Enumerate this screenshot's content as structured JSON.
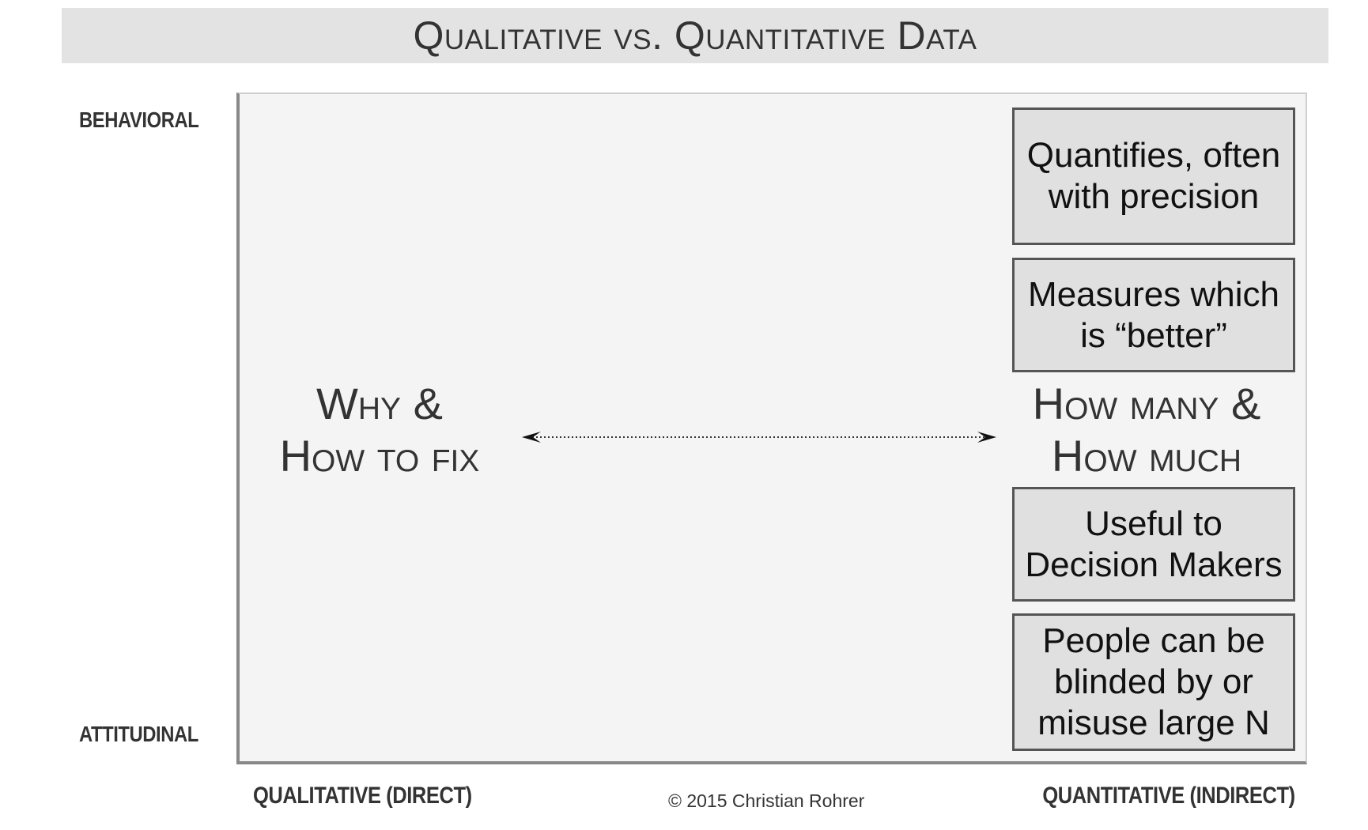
{
  "title": "Qualitative vs. Quantitative Data",
  "y_axis": {
    "top_label": "BEHAVIORAL",
    "bottom_label": "ATTITUDINAL"
  },
  "x_axis": {
    "left_label": "QUALITATIVE (DIRECT)",
    "right_label": "QUANTITATIVE (INDIRECT)"
  },
  "left_label": {
    "line1": "Why &",
    "line2": "How to fix"
  },
  "right_label": {
    "line1": "How many &",
    "line2": "How much"
  },
  "boxes": [
    {
      "line1": "Quantifies, often",
      "line2": "with precision"
    },
    {
      "line1": "Measures which",
      "line2": "is “better”"
    },
    {
      "line1": "Useful to",
      "line2": "Decision Makers"
    },
    {
      "line1": "People can be",
      "line2": "blinded by or",
      "line3": "misuse large N"
    }
  ],
  "copyright": "© 2015 Christian Rohrer",
  "colors": {
    "title_bar": "#e3e3e3",
    "plot_background": "#f4f4f4",
    "box_fill": "#e0e0e0",
    "box_border": "#555555"
  }
}
